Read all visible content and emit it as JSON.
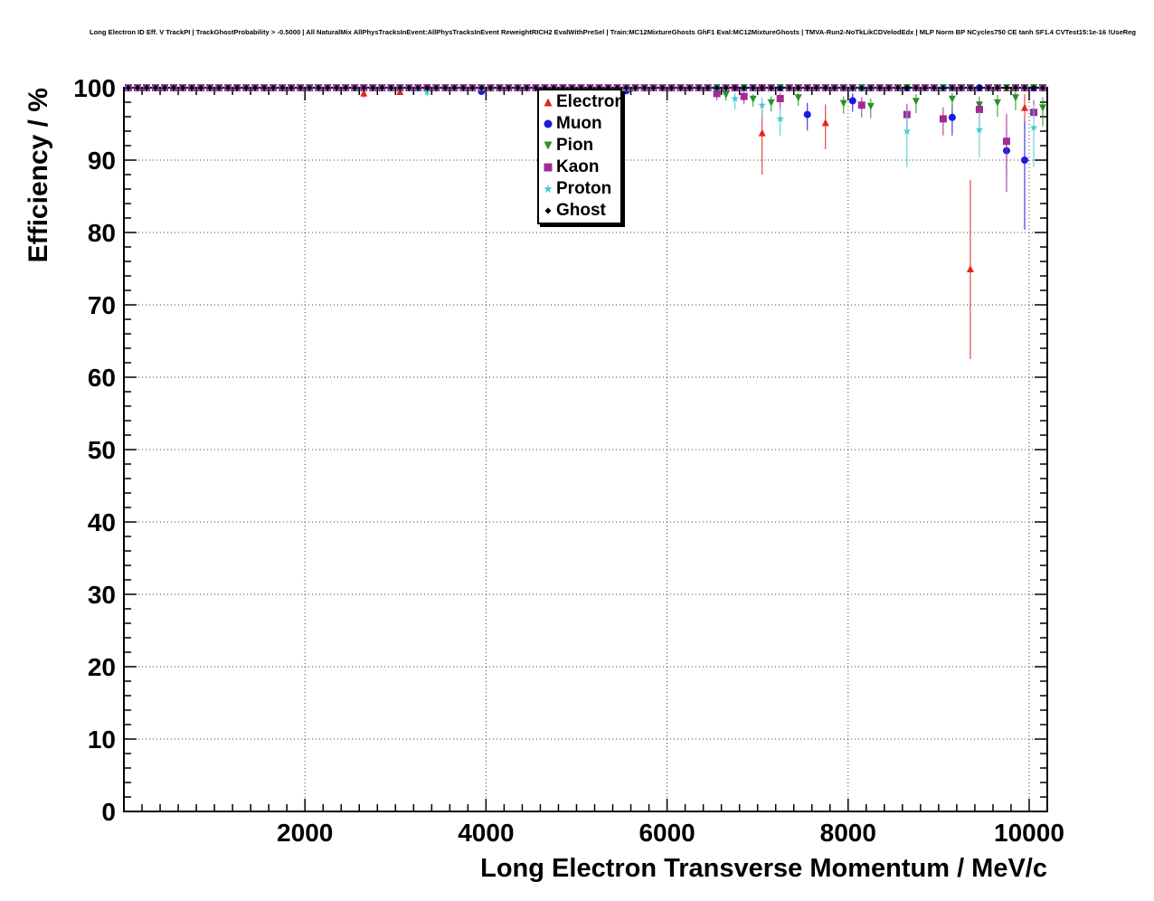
{
  "title": "Long Electron ID Eff. V TrackPI | TrackGhostProbability > -0.5000 | All NaturalMix AllPhysTracksInEvent:AllPhysTracksInEvent ReweightRICH2 EvalWithPreSel | Train:MC12MixtureGhosts GhF1 Eval:MC12MixtureGhosts | TMVA-Run2-NoTkLikCDVelodEdx | MLP Norm BP NCycles750 CE tanh SF1.4 CVTest15:1e-16 !UseReg",
  "chart_data": {
    "type": "scatter",
    "title": "Long Electron ID Eff. V TrackPI",
    "xlabel": "Long Electron Transverse Momentum / MeV/c",
    "ylabel": "Efficiency / %",
    "xlim": [
      0,
      10200
    ],
    "ylim": [
      0,
      100
    ],
    "x_major_ticks": [
      2000,
      4000,
      6000,
      8000,
      10000
    ],
    "y_major_ticks": [
      0,
      10,
      20,
      30,
      40,
      50,
      60,
      70,
      80,
      90,
      100
    ],
    "x_minor_step": 200,
    "y_minor_step": 2,
    "grid": "dotted",
    "grid_color": "#000000",
    "frame_color": "#000000",
    "background": "#ffffff",
    "legend_position": "top-center",
    "bins": {
      "start": 50,
      "end": 10150,
      "step": 100,
      "baseline_y": 100,
      "baseline_err": 0.5
    },
    "series": [
      {
        "name": "Electron",
        "marker": "triangle-up",
        "color": "#e0271e",
        "deviations": [
          [
            2650,
            99.3,
            98.6,
            99.7
          ],
          [
            3050,
            99.5,
            99.0,
            99.8
          ],
          [
            7050,
            93.8,
            88.0,
            97.4
          ],
          [
            7750,
            95.2,
            91.5,
            97.7
          ],
          [
            9350,
            75.0,
            62.5,
            87.3
          ],
          [
            9950,
            97.3,
            94.2,
            99.1
          ]
        ]
      },
      {
        "name": "Muon",
        "marker": "circle",
        "color": "#1a1ae0",
        "deviations": [
          [
            3950,
            99.5,
            99.0,
            99.8
          ],
          [
            5550,
            99.6,
            99.1,
            99.9
          ],
          [
            7550,
            96.3,
            94.1,
            97.9
          ],
          [
            8050,
            98.2,
            96.7,
            99.2
          ],
          [
            9150,
            95.9,
            93.4,
            97.7
          ],
          [
            9750,
            91.3,
            87.6,
            94.3
          ],
          [
            9950,
            90.0,
            80.4,
            95.4
          ]
        ]
      },
      {
        "name": "Pion",
        "marker": "triangle-down",
        "color": "#259425",
        "deviations": [
          [
            6650,
            99.0,
            98.2,
            99.5
          ],
          [
            6950,
            98.4,
            97.4,
            99.1
          ],
          [
            7150,
            97.9,
            96.7,
            98.8
          ],
          [
            7450,
            98.6,
            97.5,
            99.3
          ],
          [
            7950,
            97.8,
            96.4,
            98.8
          ],
          [
            8250,
            97.4,
            95.8,
            98.5
          ],
          [
            8750,
            98.1,
            96.5,
            99.1
          ],
          [
            9150,
            98.4,
            96.9,
            99.3
          ],
          [
            9450,
            97.6,
            95.7,
            98.8
          ],
          [
            9650,
            97.9,
            96.0,
            99.0
          ],
          [
            9850,
            98.6,
            96.9,
            99.5
          ],
          [
            10150,
            97.2,
            94.7,
            98.7
          ]
        ]
      },
      {
        "name": "Kaon",
        "marker": "square",
        "color": "#a22a97",
        "deviations": [
          [
            6550,
            99.2,
            98.3,
            99.7
          ],
          [
            6850,
            98.8,
            97.7,
            99.4
          ],
          [
            7250,
            98.5,
            97.1,
            99.3
          ],
          [
            8150,
            97.6,
            95.9,
            98.7
          ],
          [
            8650,
            96.3,
            94.2,
            97.8
          ],
          [
            9050,
            95.7,
            93.4,
            97.3
          ],
          [
            9450,
            97.0,
            94.7,
            98.4
          ],
          [
            9750,
            92.6,
            85.6,
            96.4
          ],
          [
            10050,
            96.6,
            93.6,
            98.3
          ]
        ]
      },
      {
        "name": "Proton",
        "marker": "star",
        "color": "#49ccd1",
        "deviations": [
          [
            3350,
            99.4,
            98.8,
            99.8
          ],
          [
            6750,
            98.5,
            97.0,
            99.3
          ],
          [
            7050,
            97.6,
            95.9,
            98.7
          ],
          [
            7250,
            95.7,
            93.4,
            97.3
          ],
          [
            8650,
            94.0,
            89.0,
            96.9
          ],
          [
            9450,
            94.2,
            90.4,
            96.7
          ],
          [
            10050,
            94.5,
            89.0,
            97.6
          ]
        ]
      },
      {
        "name": "Ghost",
        "marker": "diamond",
        "color": "#000000",
        "deviations": []
      }
    ]
  }
}
